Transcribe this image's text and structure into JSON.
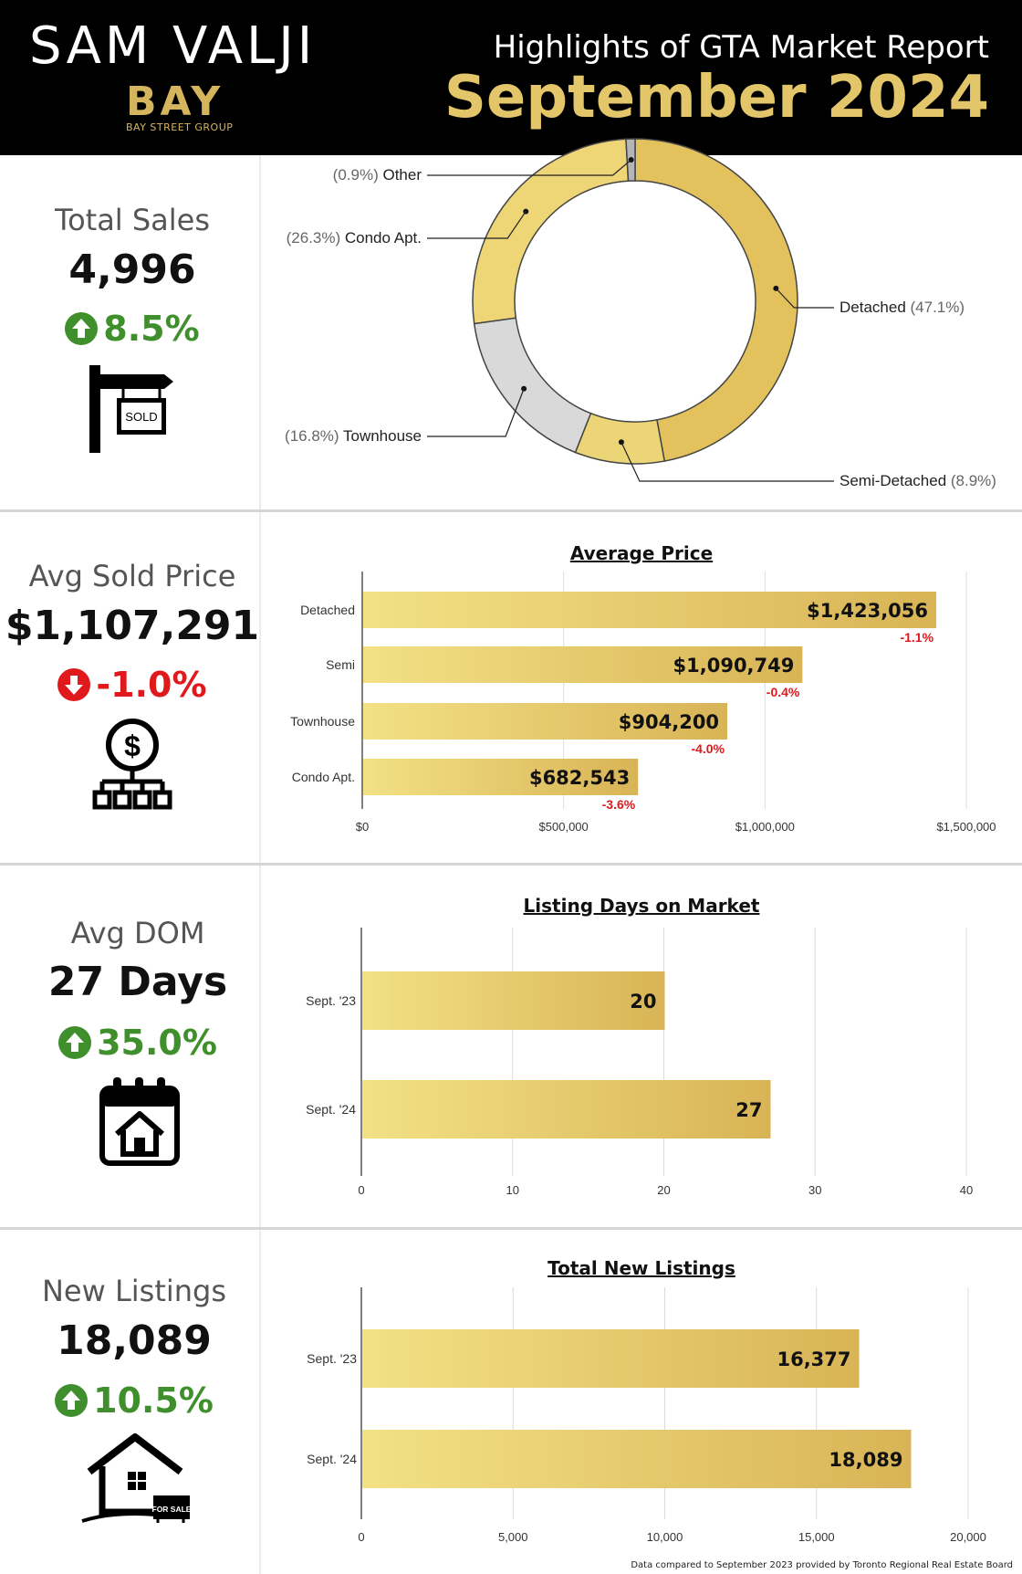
{
  "header": {
    "agent_name": "SAM VALJI",
    "brand": "BAY",
    "brand_sub": "BAY STREET GROUP",
    "title": "Highlights of GTA Market Report",
    "month": "September 2024"
  },
  "metrics": [
    {
      "label": "Total Sales",
      "value": "4,996",
      "change": "8.5%",
      "direction": "up",
      "icon": "sold-sign-icon",
      "icon_text": "SOLD"
    },
    {
      "label": "Avg Sold Price",
      "value": "$1,107,291",
      "change": "-1.0%",
      "direction": "down",
      "icon": "dollar-network-icon"
    },
    {
      "label": "Avg DOM",
      "value": "27 Days",
      "change": "35.0%",
      "direction": "up",
      "icon": "calendar-house-icon"
    },
    {
      "label": "New Listings",
      "value": "18,089",
      "change": "10.5%",
      "direction": "up",
      "icon": "house-for-sale-icon",
      "icon_text": "FOR SALE"
    }
  ],
  "colors": {
    "gold_light": "#f3e185",
    "gold_dark": "#d8b456",
    "up": "#3f8f2c",
    "down": "#e0191c",
    "gray": "#cfcfcf"
  },
  "chart_data": [
    {
      "type": "pie",
      "style": "donut",
      "slices": [
        {
          "name": "Detached",
          "pct_label": "(47.1%)",
          "value": 47.1,
          "color": "#e3c25e"
        },
        {
          "name": "Semi-Detached",
          "pct_label": "(8.9%)",
          "value": 8.9,
          "color": "#ecd577"
        },
        {
          "name": "Townhouse",
          "pct_label": "(16.8%)",
          "value": 16.8,
          "color": "#d9d9d9"
        },
        {
          "name": "Condo Apt.",
          "pct_label": "(26.3%)",
          "value": 26.3,
          "color": "#eed576"
        },
        {
          "name": "Other",
          "pct_label": "(0.9%)",
          "value": 0.9,
          "color": "#b5b5b5"
        }
      ]
    },
    {
      "type": "bar",
      "orientation": "horizontal",
      "title": "Average Price",
      "categories": [
        "Detached",
        "Semi",
        "Townhouse",
        "Condo Apt."
      ],
      "values": [
        1423056,
        1090749,
        904200,
        682543
      ],
      "value_labels": [
        "$1,423,056",
        "$1,090,749",
        "$904,200",
        "$682,543"
      ],
      "change_labels": [
        "-1.1%",
        "-0.4%",
        "-4.0%",
        "-3.6%"
      ],
      "xlim": [
        0,
        1500000
      ],
      "xticks": [
        0,
        500000,
        1000000,
        1500000
      ],
      "xtick_labels": [
        "$0",
        "$500,000",
        "$1,000,000",
        "$1,500,000"
      ],
      "grid": true
    },
    {
      "type": "bar",
      "orientation": "horizontal",
      "title": "Listing Days on Market",
      "categories": [
        "Sept. '23",
        "Sept. '24"
      ],
      "values": [
        20,
        27
      ],
      "value_labels": [
        "20",
        "27"
      ],
      "xlim": [
        0,
        40
      ],
      "xticks": [
        0,
        10,
        20,
        30,
        40
      ],
      "xtick_labels": [
        "0",
        "10",
        "20",
        "30",
        "40"
      ],
      "grid": true
    },
    {
      "type": "bar",
      "orientation": "horizontal",
      "title": "Total New Listings",
      "categories": [
        "Sept. '23",
        "Sept. '24"
      ],
      "values": [
        16377,
        18089
      ],
      "value_labels": [
        "16,377",
        "18,089"
      ],
      "xlim": [
        0,
        20000
      ],
      "xticks": [
        0,
        5000,
        10000,
        15000,
        20000
      ],
      "xtick_labels": [
        "0",
        "5,000",
        "10,000",
        "15,000",
        "20,000"
      ],
      "grid": true
    }
  ],
  "footnote": "Data compared to September 2023 provided by Toronto Regional Real Estate Board"
}
